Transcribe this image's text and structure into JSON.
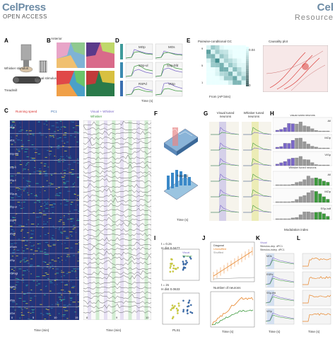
{
  "header": {
    "brand_left": "CelPress",
    "open_access": "OPEN ACCESS",
    "brand_right": "Cel",
    "resource": "Resource"
  },
  "panels": {
    "A": "A",
    "B": "B",
    "C": "C",
    "D": "D",
    "E": "E",
    "F": "F",
    "G": "G",
    "H": "H",
    "I": "I",
    "J": "J",
    "K": "K",
    "L": "L"
  },
  "panelA": {
    "whisker_stim": "Whisker stimulus",
    "visual_stim": "Visual stimulus",
    "treadmill": "Treadmill"
  },
  "panelB": {
    "anterior": "Anterior",
    "ml_axis": "ML axis",
    "ap_axis": "AP axis"
  },
  "panelD": {
    "mop": "MOp",
    "mos": "MOs",
    "sspul": "SSp-ul",
    "sspbfd": "SSp-bfd",
    "rspd": "RSPd",
    "visp": "VISp",
    "ylabel": "Activity (SD)",
    "xlabel": "Time (s)",
    "row_labels": [
      "Anterior",
      "Middle",
      "Posterior"
    ]
  },
  "panelE": {
    "title": "Pairwise-conditional GC",
    "xlabel": "From (AP bins)",
    "ylabel": "To (AP bins)",
    "ticks": [
      "9",
      "5",
      "1"
    ],
    "colorbar": "Causality",
    "cb_max": "0.04",
    "cb_min": "0",
    "causality_title": "Causality plot",
    "ap_bins": "AP bins",
    "ml_bins": "ML bins"
  },
  "panelC": {
    "running_speed": "Running speed",
    "pc1": "PC1",
    "visual": "Visual",
    "visual_whisker": "Visual + Whisker",
    "whisker": "Whisker",
    "ylabel": "Neurons",
    "xlabel": "Time (min)",
    "regions": [
      "MOp",
      "MOs",
      "SSp-bfd",
      "SSp-n",
      "SSp-ll",
      "SSp-m",
      "SSp-ul",
      "SSp-tr",
      "VISal",
      "VISam",
      "VISp",
      "RSPagl",
      "RSPd",
      "VISa",
      "VISrl"
    ],
    "xticks": [
      "0",
      "5",
      "10",
      "15"
    ],
    "xticks_zoom": [
      "8",
      "9",
      "10"
    ],
    "counts": [
      "3080",
      "1300",
      "1800",
      "2009",
      "1209",
      "1405",
      "2002",
      "1009",
      "2502"
    ]
  },
  "panelF": {
    "xlabel": "Time (s)",
    "ylabel1": "Activity (SD)",
    "ylabel2": "Intensity (A.U.)",
    "zlabel1": "Deep",
    "zlabel2": "Anterior–Posterior"
  },
  "panelG": {
    "visual_tuned": "Visual tuned neurons",
    "whisker_tuned": "Whisker tuned neurons",
    "ylabel": "Example neurons"
  },
  "panelH": {
    "ylabel": "Neuron fraction (%)",
    "xlabel": "Modulation index",
    "groups_visual": [
      "Visual tuned neurons",
      "All",
      "MOp",
      "VISp"
    ],
    "groups_whisker": [
      "Whisker tuned neurons",
      "All",
      "MOp",
      "SSp-bdf"
    ],
    "xticks": [
      "-1",
      "0",
      "1"
    ]
  },
  "panelI": {
    "legend": [
      "Visual",
      "Whisker"
    ],
    "xlabel": "PLS1",
    "ylabel": "PLS2",
    "t1": "t = 0.2s",
    "d1": "H dist 0.0477",
    "t2": "t = 2s",
    "d2": "H dist 0.0633"
  },
  "panelJ": {
    "legend": [
      "Diagonal",
      "Unshuffled",
      "Shuffled"
    ],
    "xlabel": "Number of neurons",
    "xlabel2": "Time (s)",
    "ylabel": "d'"
  },
  "panelK": {
    "legend": [
      "Visual",
      "Whisker",
      "Stimulus-dep. dPC1",
      "Stimulus-indep. dPC1"
    ],
    "ylabel": "Normalized activity (A.U.)",
    "regions": [
      "MOs",
      "RSPd",
      "SSp-bfd",
      "VISp"
    ],
    "xlabel": "Time (s)"
  },
  "panelL": {
    "ylabel": "Classification accuracy",
    "xlabel": "Time (s)"
  },
  "colors": {
    "purple": "#7b68c8",
    "green": "#3d9a3d",
    "orange": "#e8852a",
    "red": "#d9302c",
    "yellow": "#d4d43a",
    "blue": "#3a6fb0"
  }
}
